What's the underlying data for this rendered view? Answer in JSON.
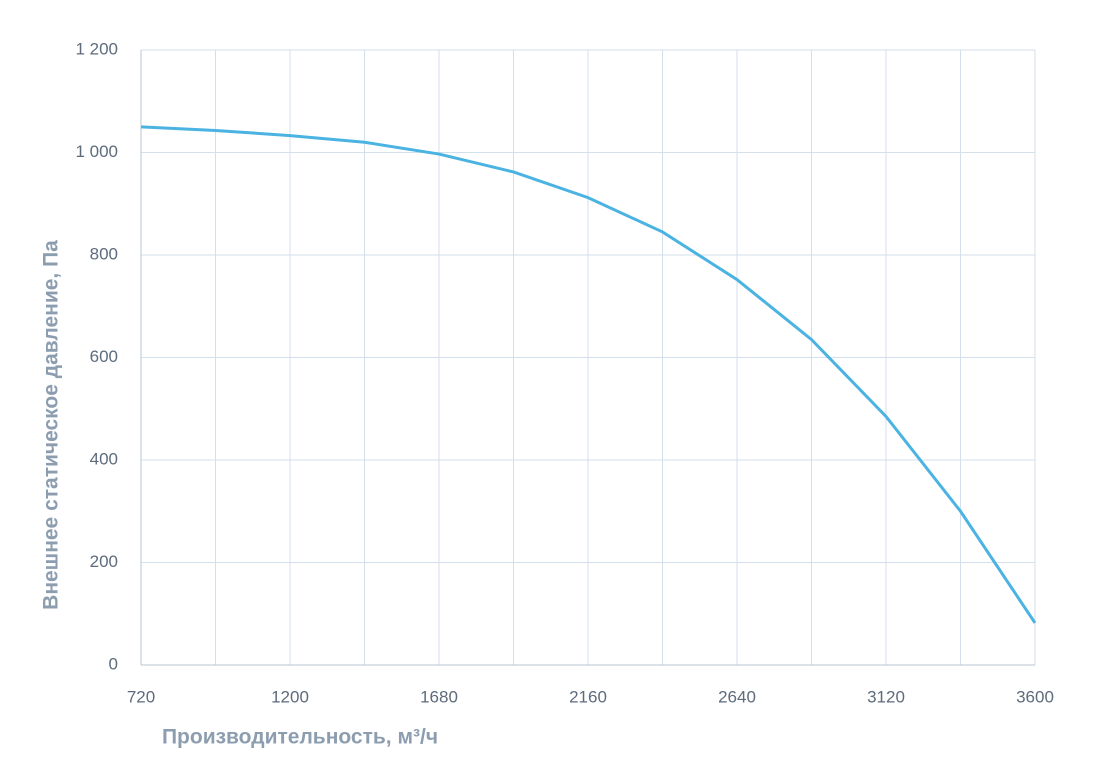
{
  "chart_data": {
    "type": "line",
    "xlabel": "Производительность, м³/ч",
    "ylabel": "Внешнее статическое давление, Па",
    "x": [
      720,
      960,
      1200,
      1440,
      1680,
      1920,
      2160,
      2400,
      2640,
      2880,
      3120,
      3360,
      3600
    ],
    "series": [
      {
        "color": "#4ab3e2",
        "values": [
          1050,
          1043,
          1033,
          1020,
          997,
          962,
          912,
          845,
          752,
          635,
          485,
          300,
          82
        ]
      }
    ],
    "xlim": [
      720,
      3600
    ],
    "xticks": [
      720,
      1200,
      1680,
      2160,
      2640,
      3120,
      3600
    ],
    "xminorticks": [
      960,
      1440,
      1920,
      2400,
      2880,
      3360
    ],
    "ylim": [
      0,
      1200
    ],
    "yticks": [
      0,
      200,
      400,
      600,
      800,
      {
        "value": 1000,
        "label": "1 000"
      },
      {
        "value": 1200,
        "label": "1 200"
      }
    ],
    "grid": true
  }
}
